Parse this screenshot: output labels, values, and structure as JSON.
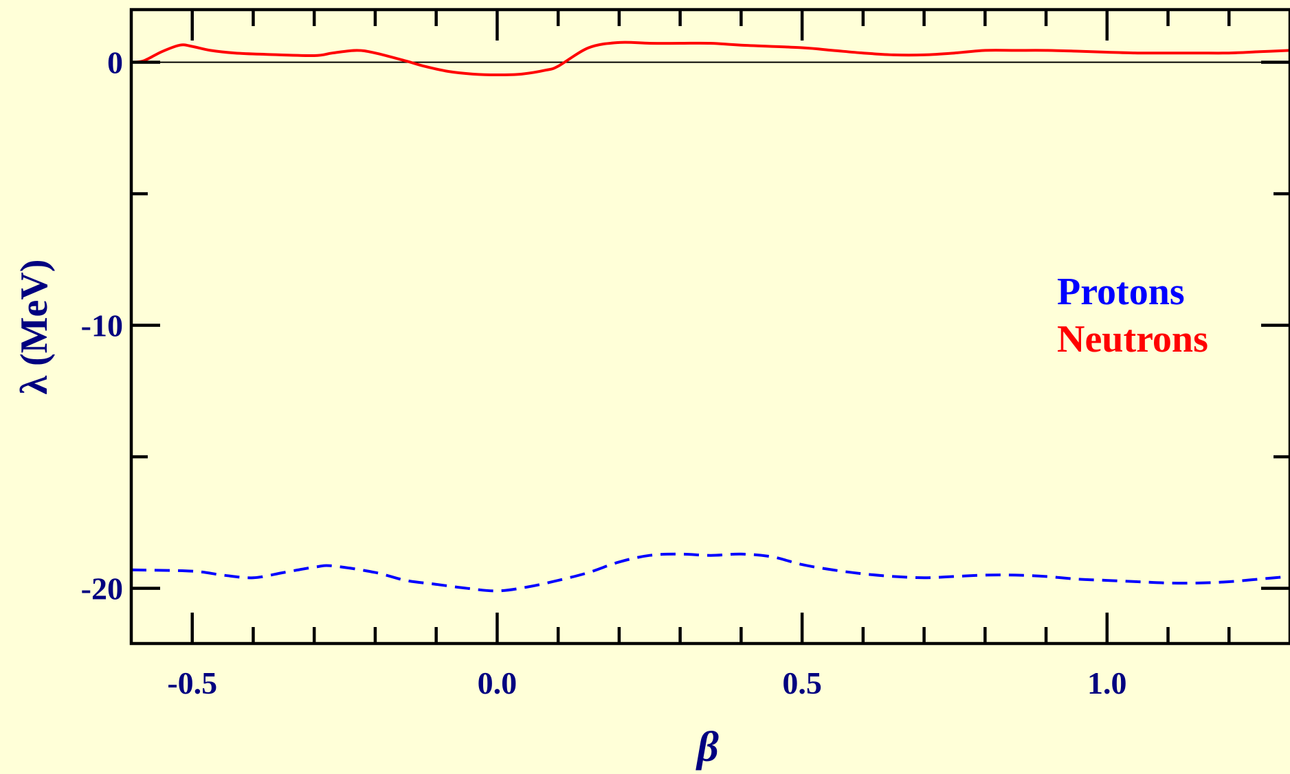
{
  "chart_data": {
    "type": "line",
    "title": "",
    "xlabel": "β",
    "ylabel": "λ (MeV)",
    "xlim": [
      -0.6,
      1.3
    ],
    "ylim": [
      -22.1,
      2.0
    ],
    "grid": false,
    "legend_position": "right-middle",
    "x_ticks": [
      {
        "value": -0.5,
        "label": "-0.5"
      },
      {
        "value": 0.0,
        "label": "0.0"
      },
      {
        "value": 0.5,
        "label": "0.5"
      },
      {
        "value": 1.0,
        "label": "1.0"
      }
    ],
    "y_ticks": [
      {
        "value": 0,
        "label": "0"
      },
      {
        "value": -10,
        "label": "-10"
      },
      {
        "value": -20,
        "label": "-20"
      }
    ],
    "zero_line": 0,
    "series": [
      {
        "name": "Protons",
        "color": "#0000ff",
        "dash": "dashed",
        "x": [
          -0.6,
          -0.5,
          -0.45,
          -0.4,
          -0.35,
          -0.3,
          -0.27,
          -0.2,
          -0.15,
          -0.1,
          -0.05,
          0.0,
          0.05,
          0.1,
          0.15,
          0.2,
          0.25,
          0.3,
          0.35,
          0.4,
          0.45,
          0.5,
          0.55,
          0.6,
          0.65,
          0.7,
          0.75,
          0.8,
          0.85,
          0.9,
          0.95,
          1.0,
          1.05,
          1.1,
          1.15,
          1.2,
          1.25,
          1.3
        ],
        "y": [
          -19.3,
          -19.35,
          -19.5,
          -19.6,
          -19.4,
          -19.2,
          -19.15,
          -19.4,
          -19.7,
          -19.85,
          -20.0,
          -20.1,
          -19.95,
          -19.7,
          -19.4,
          -19.0,
          -18.75,
          -18.7,
          -18.75,
          -18.7,
          -18.8,
          -19.1,
          -19.3,
          -19.45,
          -19.55,
          -19.6,
          -19.55,
          -19.5,
          -19.5,
          -19.55,
          -19.65,
          -19.7,
          -19.75,
          -19.8,
          -19.8,
          -19.75,
          -19.65,
          -19.55
        ]
      },
      {
        "name": "Neutrons",
        "color": "#ff0000",
        "dash": "solid",
        "x": [
          -0.6,
          -0.58,
          -0.55,
          -0.52,
          -0.5,
          -0.47,
          -0.43,
          -0.38,
          -0.3,
          -0.27,
          -0.23,
          -0.2,
          -0.15,
          -0.12,
          -0.08,
          -0.04,
          0.0,
          0.04,
          0.08,
          0.1,
          0.15,
          0.2,
          0.25,
          0.3,
          0.35,
          0.4,
          0.5,
          0.55,
          0.6,
          0.65,
          0.7,
          0.75,
          0.8,
          0.85,
          0.9,
          0.95,
          1.0,
          1.05,
          1.1,
          1.15,
          1.2,
          1.25,
          1.3
        ],
        "y": [
          0.0,
          0.05,
          0.4,
          0.65,
          0.6,
          0.45,
          0.35,
          0.3,
          0.25,
          0.35,
          0.45,
          0.35,
          0.05,
          -0.15,
          -0.35,
          -0.45,
          -0.48,
          -0.45,
          -0.3,
          -0.15,
          0.55,
          0.75,
          0.72,
          0.72,
          0.72,
          0.65,
          0.55,
          0.45,
          0.35,
          0.28,
          0.28,
          0.35,
          0.45,
          0.45,
          0.45,
          0.42,
          0.38,
          0.35,
          0.35,
          0.35,
          0.35,
          0.4,
          0.45
        ]
      }
    ]
  }
}
